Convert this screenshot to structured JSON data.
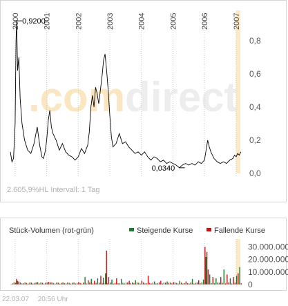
{
  "watermark": ".comdirect",
  "chart_data": [
    {
      "type": "line",
      "title": "",
      "xlabel": "",
      "ylabel": "",
      "year_labels": [
        "2000",
        "2001",
        "2002",
        "2003",
        "2004",
        "2005",
        "2006",
        "2007"
      ],
      "yticks": [
        "0,8",
        "0,6",
        "0,4",
        "0,2",
        "0,0"
      ],
      "ytick_values": [
        0.8,
        0.6,
        0.4,
        0.2,
        0.0
      ],
      "ylim": [
        0,
        0.95
      ],
      "xlim": [
        1999.85,
        2007.2
      ],
      "max_label": "0,9200",
      "min_label": "0,0340",
      "max_point": {
        "x": 2000.05,
        "y": 0.92
      },
      "min_point": {
        "x": 2005.2,
        "y": 0.034
      },
      "grid": "vertical-dotted",
      "series": [
        {
          "color": "#000000",
          "points": [
            [
              1999.85,
              0.13
            ],
            [
              1999.9,
              0.07
            ],
            [
              1999.95,
              0.09
            ],
            [
              2000.0,
              0.3
            ],
            [
              2000.03,
              0.8
            ],
            [
              2000.05,
              0.92
            ],
            [
              2000.08,
              0.62
            ],
            [
              2000.12,
              0.7
            ],
            [
              2000.16,
              0.45
            ],
            [
              2000.22,
              0.3
            ],
            [
              2000.3,
              0.2
            ],
            [
              2000.4,
              0.14
            ],
            [
              2000.5,
              0.12
            ],
            [
              2000.6,
              0.18
            ],
            [
              2000.7,
              0.28
            ],
            [
              2000.78,
              0.17
            ],
            [
              2000.85,
              0.1
            ],
            [
              2000.9,
              0.09
            ],
            [
              2000.95,
              0.13
            ],
            [
              2001.0,
              0.2
            ],
            [
              2001.05,
              0.32
            ],
            [
              2001.1,
              0.38
            ],
            [
              2001.15,
              0.28
            ],
            [
              2001.2,
              0.24
            ],
            [
              2001.3,
              0.2
            ],
            [
              2001.4,
              0.14
            ],
            [
              2001.5,
              0.18
            ],
            [
              2001.6,
              0.13
            ],
            [
              2001.7,
              0.11
            ],
            [
              2001.8,
              0.1
            ],
            [
              2001.9,
              0.08
            ],
            [
              2002.0,
              0.1
            ],
            [
              2002.1,
              0.15
            ],
            [
              2002.2,
              0.12
            ],
            [
              2002.3,
              0.17
            ],
            [
              2002.35,
              0.25
            ],
            [
              2002.4,
              0.4
            ],
            [
              2002.45,
              0.47
            ],
            [
              2002.5,
              0.4
            ],
            [
              2002.55,
              0.52
            ],
            [
              2002.6,
              0.48
            ],
            [
              2002.65,
              0.42
            ],
            [
              2002.7,
              0.5
            ],
            [
              2002.75,
              0.58
            ],
            [
              2002.8,
              0.68
            ],
            [
              2002.85,
              0.72
            ],
            [
              2002.9,
              0.62
            ],
            [
              2002.95,
              0.5
            ],
            [
              2003.0,
              0.35
            ],
            [
              2003.05,
              0.22
            ],
            [
              2003.1,
              0.16
            ],
            [
              2003.2,
              0.18
            ],
            [
              2003.3,
              0.24
            ],
            [
              2003.4,
              0.18
            ],
            [
              2003.5,
              0.19
            ],
            [
              2003.6,
              0.16
            ],
            [
              2003.7,
              0.14
            ],
            [
              2003.8,
              0.12
            ],
            [
              2003.9,
              0.13
            ],
            [
              2004.0,
              0.11
            ],
            [
              2004.1,
              0.13
            ],
            [
              2004.2,
              0.1
            ],
            [
              2004.3,
              0.08
            ],
            [
              2004.4,
              0.1
            ],
            [
              2004.5,
              0.09
            ],
            [
              2004.6,
              0.07
            ],
            [
              2004.7,
              0.08
            ],
            [
              2004.8,
              0.06
            ],
            [
              2004.9,
              0.07
            ],
            [
              2005.0,
              0.06
            ],
            [
              2005.1,
              0.05
            ],
            [
              2005.2,
              0.034
            ],
            [
              2005.3,
              0.05
            ],
            [
              2005.4,
              0.06
            ],
            [
              2005.5,
              0.05
            ],
            [
              2005.6,
              0.06
            ],
            [
              2005.7,
              0.05
            ],
            [
              2005.8,
              0.07
            ],
            [
              2005.9,
              0.06
            ],
            [
              2006.0,
              0.08
            ],
            [
              2006.05,
              0.14
            ],
            [
              2006.1,
              0.2
            ],
            [
              2006.15,
              0.16
            ],
            [
              2006.2,
              0.13
            ],
            [
              2006.3,
              0.09
            ],
            [
              2006.4,
              0.07
            ],
            [
              2006.5,
              0.06
            ],
            [
              2006.6,
              0.07
            ],
            [
              2006.7,
              0.06
            ],
            [
              2006.8,
              0.08
            ],
            [
              2006.9,
              0.09
            ],
            [
              2006.95,
              0.11
            ],
            [
              2007.0,
              0.1
            ],
            [
              2007.05,
              0.12
            ],
            [
              2007.1,
              0.11
            ],
            [
              2007.15,
              0.13
            ]
          ]
        }
      ]
    },
    {
      "type": "bar",
      "title": "Stück-Volumen (rot-grün)",
      "legend": [
        {
          "name": "Steigende Kurse",
          "color": "#1a7a2e"
        },
        {
          "name": "Fallende Kurse",
          "color": "#cc1111"
        }
      ],
      "yticks": [
        "30.000.000",
        "20.000.000",
        "10.000.000",
        "0"
      ],
      "ytick_values": [
        30000000,
        20000000,
        10000000,
        0
      ],
      "ylim": [
        0,
        33000000
      ],
      "xlim": [
        1999.85,
        2007.2
      ],
      "bars": [
        {
          "x": 2000.03,
          "value": 4500000,
          "dir": "down"
        },
        {
          "x": 2000.06,
          "value": 3000000,
          "dir": "up"
        },
        {
          "x": 2000.1,
          "value": 2500000,
          "dir": "down"
        },
        {
          "x": 2000.5,
          "value": 1500000,
          "dir": "up"
        },
        {
          "x": 2000.7,
          "value": 2000000,
          "dir": "up"
        },
        {
          "x": 2001.05,
          "value": 2200000,
          "dir": "down"
        },
        {
          "x": 2001.1,
          "value": 1800000,
          "dir": "up"
        },
        {
          "x": 2001.5,
          "value": 1500000,
          "dir": "up"
        },
        {
          "x": 2002.0,
          "value": 2000000,
          "dir": "down"
        },
        {
          "x": 2002.2,
          "value": 6000000,
          "dir": "up"
        },
        {
          "x": 2002.3,
          "value": 3500000,
          "dir": "down"
        },
        {
          "x": 2002.4,
          "value": 4500000,
          "dir": "up"
        },
        {
          "x": 2002.5,
          "value": 3000000,
          "dir": "down"
        },
        {
          "x": 2002.6,
          "value": 5000000,
          "dir": "up"
        },
        {
          "x": 2002.7,
          "value": 7000000,
          "dir": "down"
        },
        {
          "x": 2002.78,
          "value": 5500000,
          "dir": "up"
        },
        {
          "x": 2002.85,
          "value": 9000000,
          "dir": "up"
        },
        {
          "x": 2002.88,
          "value": 27000000,
          "dir": "down"
        },
        {
          "x": 2002.95,
          "value": 6000000,
          "dir": "down"
        },
        {
          "x": 2003.05,
          "value": 4000000,
          "dir": "up"
        },
        {
          "x": 2003.2,
          "value": 5000000,
          "dir": "down"
        },
        {
          "x": 2003.35,
          "value": 4500000,
          "dir": "up"
        },
        {
          "x": 2003.6,
          "value": 3000000,
          "dir": "down"
        },
        {
          "x": 2003.8,
          "value": 3500000,
          "dir": "up"
        },
        {
          "x": 2004.0,
          "value": 3000000,
          "dir": "down"
        },
        {
          "x": 2004.2,
          "value": 7000000,
          "dir": "down"
        },
        {
          "x": 2004.4,
          "value": 2500000,
          "dir": "up"
        },
        {
          "x": 2004.6,
          "value": 3000000,
          "dir": "down"
        },
        {
          "x": 2004.8,
          "value": 2500000,
          "dir": "up"
        },
        {
          "x": 2005.0,
          "value": 2000000,
          "dir": "down"
        },
        {
          "x": 2005.2,
          "value": 3000000,
          "dir": "up"
        },
        {
          "x": 2005.4,
          "value": 2500000,
          "dir": "down"
        },
        {
          "x": 2005.6,
          "value": 4500000,
          "dir": "up"
        },
        {
          "x": 2005.8,
          "value": 3500000,
          "dir": "down"
        },
        {
          "x": 2005.95,
          "value": 4000000,
          "dir": "up"
        },
        {
          "x": 2006.0,
          "value": 30000000,
          "dir": "down"
        },
        {
          "x": 2006.03,
          "value": 22000000,
          "dir": "up"
        },
        {
          "x": 2006.06,
          "value": 26000000,
          "dir": "down"
        },
        {
          "x": 2006.1,
          "value": 12000000,
          "dir": "down"
        },
        {
          "x": 2006.15,
          "value": 8000000,
          "dir": "up"
        },
        {
          "x": 2006.25,
          "value": 6000000,
          "dir": "down"
        },
        {
          "x": 2006.35,
          "value": 5000000,
          "dir": "up"
        },
        {
          "x": 2006.5,
          "value": 6000000,
          "dir": "down"
        },
        {
          "x": 2006.6,
          "value": 12000000,
          "dir": "up"
        },
        {
          "x": 2006.7,
          "value": 8000000,
          "dir": "down"
        },
        {
          "x": 2006.8,
          "value": 5000000,
          "dir": "up"
        },
        {
          "x": 2006.9,
          "value": 6000000,
          "dir": "down"
        },
        {
          "x": 2007.0,
          "value": 7000000,
          "dir": "up"
        },
        {
          "x": 2007.05,
          "value": 9000000,
          "dir": "down"
        },
        {
          "x": 2007.1,
          "value": 14000000,
          "dir": "up"
        }
      ]
    }
  ],
  "price_panel": {
    "status": "2.605,9%HL",
    "interval": "Intervall: 1 Tag"
  },
  "footer": {
    "date": "22.03.07",
    "time": "20:56 Uhr"
  }
}
